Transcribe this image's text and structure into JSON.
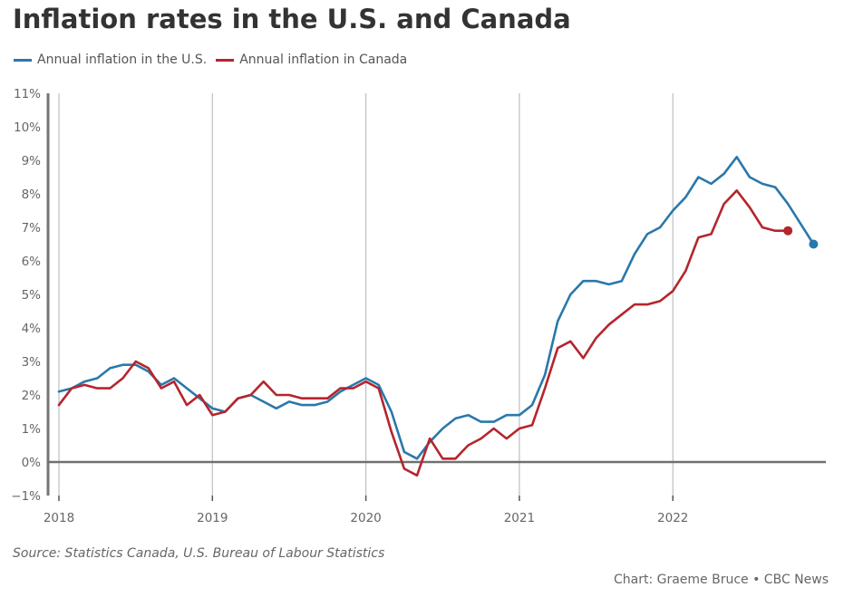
{
  "title": "Inflation rates in the U.S. and Canada",
  "legend": [
    {
      "label": "Annual inflation in the U.S.",
      "color": "#2a78aa"
    },
    {
      "label": "Annual inflation in Canada",
      "color": "#b5252d"
    }
  ],
  "source": "Source: Statistics Canada, U.S. Bureau of Labour Statistics",
  "credit": "Chart: Graeme Bruce • CBC News",
  "chart_data": {
    "type": "line",
    "title": "Inflation rates in the U.S. and Canada",
    "xlabel": "",
    "ylabel": "",
    "x_start": "2018-01",
    "x_frequency": "monthly",
    "xlim": [
      2018.0,
      2022.99
    ],
    "ylim": [
      -1,
      11
    ],
    "y_ticks": [
      -1,
      0,
      1,
      2,
      3,
      4,
      5,
      6,
      7,
      8,
      9,
      10,
      11
    ],
    "y_tick_labels": [
      "−1%",
      "0%",
      "1%",
      "2%",
      "3%",
      "4%",
      "5%",
      "6%",
      "7%",
      "8%",
      "9%",
      "10%",
      "11%"
    ],
    "x_ticks": [
      2018,
      2019,
      2020,
      2021,
      2022
    ],
    "x_tick_labels": [
      "2018",
      "2019",
      "2020",
      "2021",
      "2022"
    ],
    "grid": "vertical lines at year ticks",
    "legend_position": "top-left",
    "series": [
      {
        "name": "Annual inflation in the U.S.",
        "color": "#2a78aa",
        "end_marker": true,
        "values": [
          2.1,
          2.2,
          2.4,
          2.5,
          2.8,
          2.9,
          2.9,
          2.7,
          2.3,
          2.5,
          2.2,
          1.9,
          1.6,
          1.5,
          1.9,
          2.0,
          1.8,
          1.6,
          1.8,
          1.7,
          1.7,
          1.8,
          2.1,
          2.3,
          2.5,
          2.3,
          1.5,
          0.3,
          0.1,
          0.6,
          1.0,
          1.3,
          1.4,
          1.2,
          1.2,
          1.4,
          1.4,
          1.7,
          2.6,
          4.2,
          5.0,
          5.4,
          5.4,
          5.3,
          5.4,
          6.2,
          6.8,
          7.0,
          7.5,
          7.9,
          8.5,
          8.3,
          8.6,
          9.1,
          8.5,
          8.3,
          8.2,
          7.7,
          7.1,
          6.5
        ]
      },
      {
        "name": "Annual inflation in Canada",
        "color": "#b5252d",
        "end_marker": true,
        "values": [
          1.7,
          2.2,
          2.3,
          2.2,
          2.2,
          2.5,
          3.0,
          2.8,
          2.2,
          2.4,
          1.7,
          2.0,
          1.4,
          1.5,
          1.9,
          2.0,
          2.4,
          2.0,
          2.0,
          1.9,
          1.9,
          1.9,
          2.2,
          2.2,
          2.4,
          2.2,
          0.9,
          -0.2,
          -0.4,
          0.7,
          0.1,
          0.1,
          0.5,
          0.7,
          1.0,
          0.7,
          1.0,
          1.1,
          2.2,
          3.4,
          3.6,
          3.1,
          3.7,
          4.1,
          4.4,
          4.7,
          4.7,
          4.8,
          5.1,
          5.7,
          6.7,
          6.8,
          7.7,
          8.1,
          7.6,
          7.0,
          6.9,
          6.9
        ]
      }
    ]
  }
}
